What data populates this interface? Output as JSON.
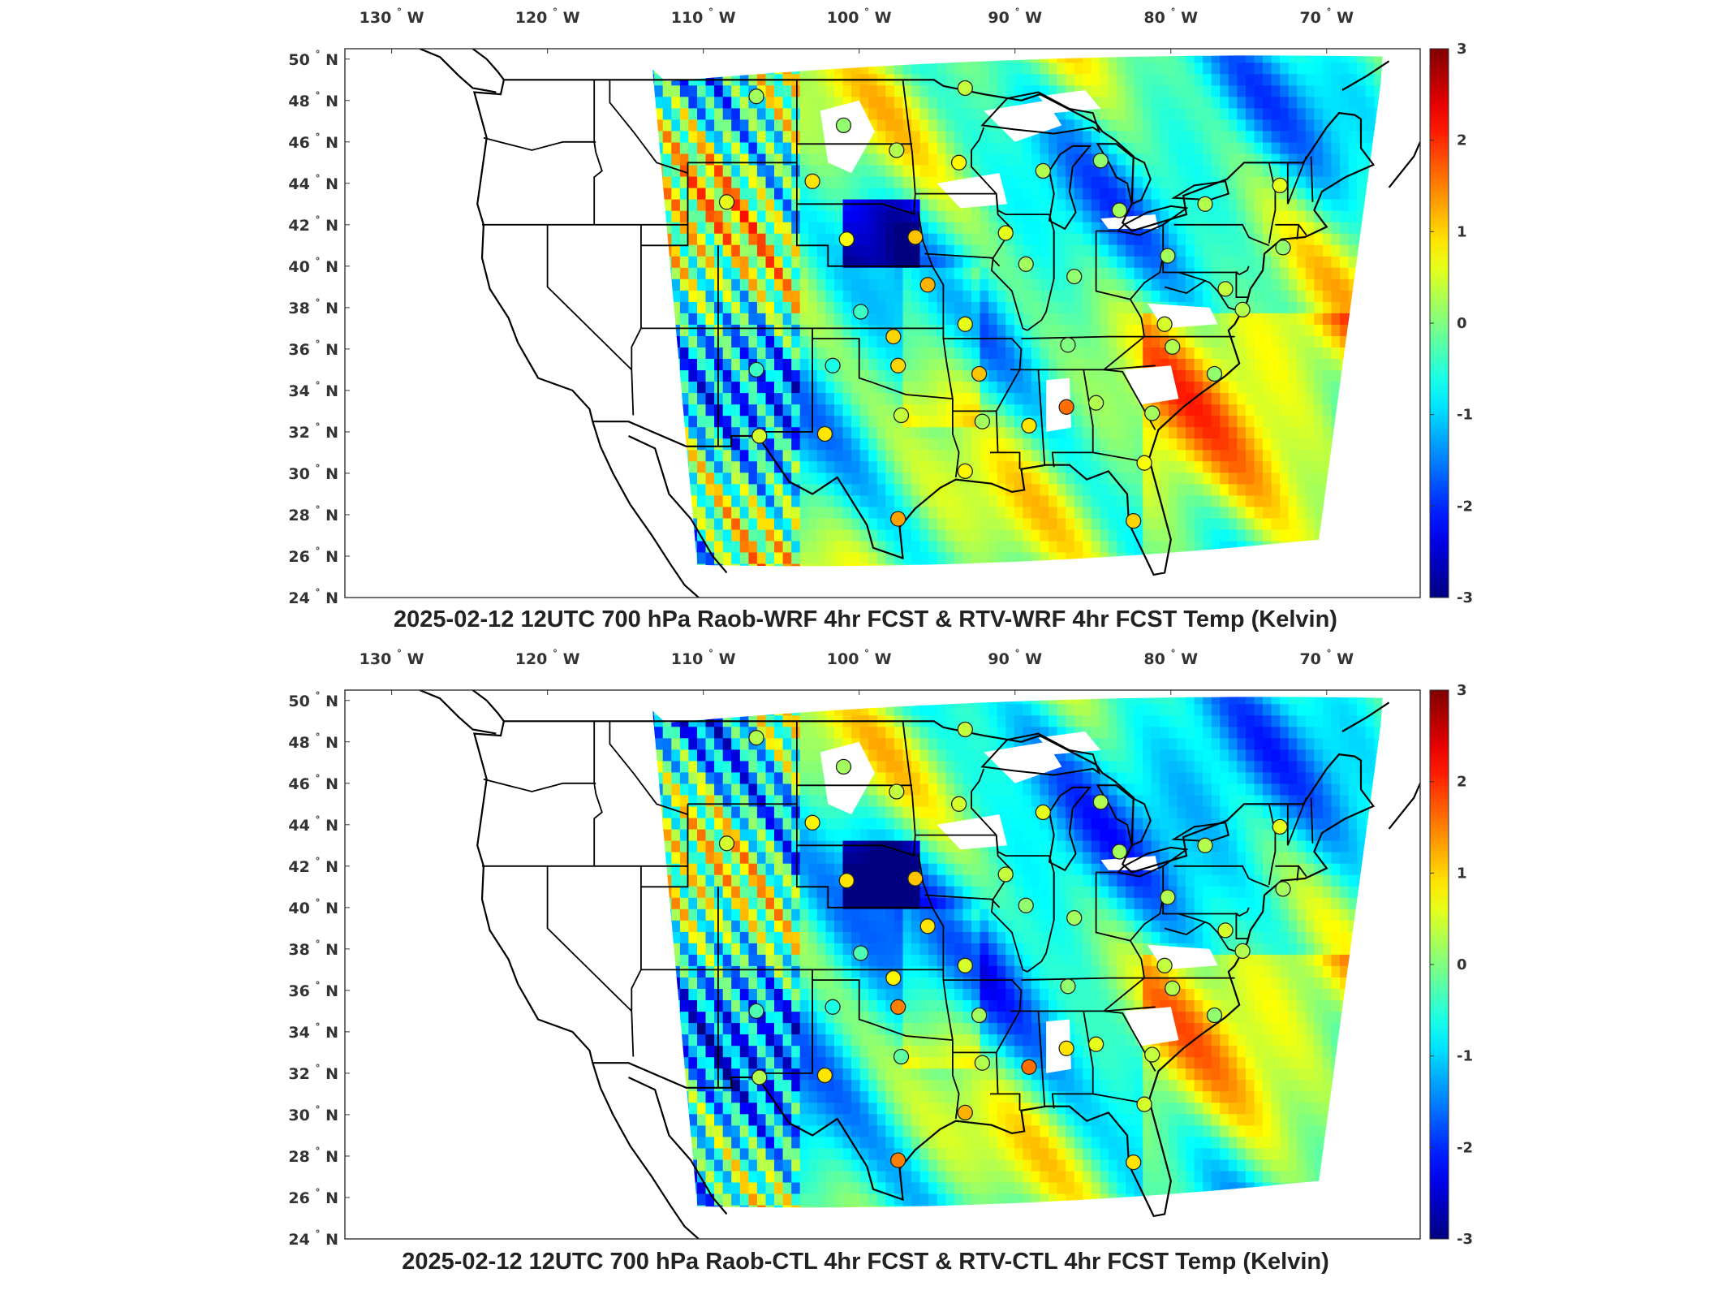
{
  "panels": [
    {
      "id": "top",
      "title": "2025-02-12 12UTC 700 hPa Raob-WRF 4hr FCST & RTV-WRF 4hr FCST Temp (Kelvin)",
      "colorbar": {
        "min": -3,
        "max": 3,
        "ticks": [
          "3",
          "2",
          "1",
          "0",
          "-1",
          "-2",
          "-3"
        ],
        "colormap": "jet"
      },
      "stations": [
        {
          "lon": -106.6,
          "lat": 48.2,
          "value": 0.2
        },
        {
          "lon": -101.0,
          "lat": 46.8,
          "value": 0.1
        },
        {
          "lon": -97.6,
          "lat": 45.6,
          "value": 0.3
        },
        {
          "lon": -93.2,
          "lat": 48.6,
          "value": 0.4
        },
        {
          "lon": -93.6,
          "lat": 45.0,
          "value": 0.8
        },
        {
          "lon": -88.2,
          "lat": 44.6,
          "value": 0.3
        },
        {
          "lon": -84.5,
          "lat": 45.1,
          "value": 0.1
        },
        {
          "lon": -83.3,
          "lat": 42.7,
          "value": 0.2
        },
        {
          "lon": -108.5,
          "lat": 43.1,
          "value": 0.6
        },
        {
          "lon": -103.0,
          "lat": 44.1,
          "value": 0.9
        },
        {
          "lon": -100.8,
          "lat": 41.3,
          "value": 0.7
        },
        {
          "lon": -96.4,
          "lat": 41.4,
          "value": 1.1
        },
        {
          "lon": -90.6,
          "lat": 41.6,
          "value": 0.6
        },
        {
          "lon": -77.8,
          "lat": 43.0,
          "value": 0.3
        },
        {
          "lon": -73.0,
          "lat": 43.9,
          "value": 0.6
        },
        {
          "lon": -72.8,
          "lat": 40.9,
          "value": 0.1
        },
        {
          "lon": -95.6,
          "lat": 39.1,
          "value": 1.2
        },
        {
          "lon": -89.3,
          "lat": 40.1,
          "value": 0.2
        },
        {
          "lon": -86.2,
          "lat": 39.5,
          "value": 0.1
        },
        {
          "lon": -80.2,
          "lat": 40.5,
          "value": 0.2
        },
        {
          "lon": -99.9,
          "lat": 37.8,
          "value": -0.4
        },
        {
          "lon": -93.2,
          "lat": 37.2,
          "value": 0.6
        },
        {
          "lon": -76.5,
          "lat": 38.9,
          "value": 0.4
        },
        {
          "lon": -75.4,
          "lat": 37.9,
          "value": 0.3
        },
        {
          "lon": -80.4,
          "lat": 37.2,
          "value": 0.5
        },
        {
          "lon": -97.8,
          "lat": 36.6,
          "value": 1.0
        },
        {
          "lon": -86.6,
          "lat": 36.2,
          "value": 0.0
        },
        {
          "lon": -79.9,
          "lat": 36.1,
          "value": 0.3
        },
        {
          "lon": -106.6,
          "lat": 35.0,
          "value": -0.4
        },
        {
          "lon": -101.7,
          "lat": 35.2,
          "value": -0.6
        },
        {
          "lon": -97.5,
          "lat": 35.2,
          "value": 1.0
        },
        {
          "lon": -92.3,
          "lat": 34.8,
          "value": 1.1
        },
        {
          "lon": -77.2,
          "lat": 34.8,
          "value": 0.1
        },
        {
          "lon": -97.3,
          "lat": 32.8,
          "value": 0.4
        },
        {
          "lon": -92.1,
          "lat": 32.5,
          "value": 0.2
        },
        {
          "lon": -89.1,
          "lat": 32.3,
          "value": 0.9
        },
        {
          "lon": -86.7,
          "lat": 33.2,
          "value": 1.6
        },
        {
          "lon": -84.8,
          "lat": 33.4,
          "value": 0.3
        },
        {
          "lon": -81.2,
          "lat": 32.9,
          "value": 0.2
        },
        {
          "lon": -106.4,
          "lat": 31.8,
          "value": 0.5
        },
        {
          "lon": -102.2,
          "lat": 31.9,
          "value": 0.9
        },
        {
          "lon": -93.2,
          "lat": 30.1,
          "value": 0.8
        },
        {
          "lon": -81.7,
          "lat": 30.5,
          "value": 0.7
        },
        {
          "lon": -97.5,
          "lat": 27.8,
          "value": 1.3
        },
        {
          "lon": -82.4,
          "lat": 27.7,
          "value": 1.0
        }
      ]
    },
    {
      "id": "bottom",
      "title": "2025-02-12 12UTC 700 hPa Raob-CTL 4hr FCST & RTV-CTL 4hr FCST Temp (Kelvin)",
      "colorbar": {
        "min": -3,
        "max": 3,
        "ticks": [
          "3",
          "2",
          "1",
          "0",
          "-1",
          "-2",
          "-3"
        ],
        "colormap": "jet"
      },
      "stations": [
        {
          "lon": -106.6,
          "lat": 48.2,
          "value": 0.3
        },
        {
          "lon": -101.0,
          "lat": 46.8,
          "value": 0.2
        },
        {
          "lon": -97.6,
          "lat": 45.6,
          "value": 0.4
        },
        {
          "lon": -93.2,
          "lat": 48.6,
          "value": 0.4
        },
        {
          "lon": -93.6,
          "lat": 45.0,
          "value": 0.5
        },
        {
          "lon": -88.2,
          "lat": 44.6,
          "value": 0.6
        },
        {
          "lon": -84.5,
          "lat": 45.1,
          "value": 0.3
        },
        {
          "lon": -83.3,
          "lat": 42.7,
          "value": 0.2
        },
        {
          "lon": -108.5,
          "lat": 43.1,
          "value": 0.5
        },
        {
          "lon": -103.0,
          "lat": 44.1,
          "value": 0.8
        },
        {
          "lon": -100.8,
          "lat": 41.3,
          "value": 0.9
        },
        {
          "lon": -96.4,
          "lat": 41.4,
          "value": 1.1
        },
        {
          "lon": -90.6,
          "lat": 41.6,
          "value": 0.4
        },
        {
          "lon": -77.8,
          "lat": 43.0,
          "value": 0.3
        },
        {
          "lon": -73.0,
          "lat": 43.9,
          "value": 0.6
        },
        {
          "lon": -72.8,
          "lat": 40.9,
          "value": 0.2
        },
        {
          "lon": -95.6,
          "lat": 39.1,
          "value": 0.9
        },
        {
          "lon": -89.3,
          "lat": 40.1,
          "value": 0.1
        },
        {
          "lon": -86.2,
          "lat": 39.5,
          "value": 0.2
        },
        {
          "lon": -80.2,
          "lat": 40.5,
          "value": 0.3
        },
        {
          "lon": -99.9,
          "lat": 37.8,
          "value": -0.3
        },
        {
          "lon": -93.2,
          "lat": 37.2,
          "value": 0.5
        },
        {
          "lon": -76.5,
          "lat": 38.9,
          "value": 0.5
        },
        {
          "lon": -75.4,
          "lat": 37.9,
          "value": 0.3
        },
        {
          "lon": -80.4,
          "lat": 37.2,
          "value": 0.4
        },
        {
          "lon": -97.8,
          "lat": 36.6,
          "value": 0.8
        },
        {
          "lon": -86.6,
          "lat": 36.2,
          "value": 0.1
        },
        {
          "lon": -79.9,
          "lat": 36.1,
          "value": 0.3
        },
        {
          "lon": -106.6,
          "lat": 35.0,
          "value": -0.3
        },
        {
          "lon": -101.7,
          "lat": 35.2,
          "value": -0.6
        },
        {
          "lon": -97.5,
          "lat": 35.2,
          "value": 1.5
        },
        {
          "lon": -92.3,
          "lat": 34.8,
          "value": 0.2
        },
        {
          "lon": -77.2,
          "lat": 34.8,
          "value": 0.1
        },
        {
          "lon": -97.3,
          "lat": 32.8,
          "value": -0.2
        },
        {
          "lon": -92.1,
          "lat": 32.5,
          "value": 0.3
        },
        {
          "lon": -89.1,
          "lat": 32.3,
          "value": 1.6
        },
        {
          "lon": -86.7,
          "lat": 33.2,
          "value": 0.9
        },
        {
          "lon": -84.8,
          "lat": 33.4,
          "value": 0.6
        },
        {
          "lon": -81.2,
          "lat": 32.9,
          "value": 0.4
        },
        {
          "lon": -106.4,
          "lat": 31.8,
          "value": 0.3
        },
        {
          "lon": -102.2,
          "lat": 31.9,
          "value": 0.9
        },
        {
          "lon": -93.2,
          "lat": 30.1,
          "value": 1.2
        },
        {
          "lon": -81.7,
          "lat": 30.5,
          "value": 0.5
        },
        {
          "lon": -97.5,
          "lat": 27.8,
          "value": 1.5
        },
        {
          "lon": -82.4,
          "lat": 27.7,
          "value": 0.9
        }
      ]
    }
  ],
  "axes": {
    "lon_ticks": [
      {
        "lon": -130,
        "label": "130",
        "hemi": "W"
      },
      {
        "lon": -120,
        "label": "120",
        "hemi": "W"
      },
      {
        "lon": -110,
        "label": "110",
        "hemi": "W"
      },
      {
        "lon": -100,
        "label": "100",
        "hemi": "W"
      },
      {
        "lon": -90,
        "label": "90",
        "hemi": "W"
      },
      {
        "lon": -80,
        "label": "80",
        "hemi": "W"
      },
      {
        "lon": -70,
        "label": "70",
        "hemi": "W"
      }
    ],
    "lat_ticks": [
      {
        "lat": 50,
        "label": "50",
        "hemi": "N"
      },
      {
        "lat": 48,
        "label": "48",
        "hemi": "N"
      },
      {
        "lat": 46,
        "label": "46",
        "hemi": "N"
      },
      {
        "lat": 44,
        "label": "44",
        "hemi": "N"
      },
      {
        "lat": 42,
        "label": "42",
        "hemi": "N"
      },
      {
        "lat": 40,
        "label": "40",
        "hemi": "N"
      },
      {
        "lat": 38,
        "label": "38",
        "hemi": "N"
      },
      {
        "lat": 36,
        "label": "36",
        "hemi": "N"
      },
      {
        "lat": 34,
        "label": "34",
        "hemi": "N"
      },
      {
        "lat": 32,
        "label": "32",
        "hemi": "N"
      },
      {
        "lat": 30,
        "label": "30",
        "hemi": "N"
      },
      {
        "lat": 28,
        "label": "28",
        "hemi": "N"
      },
      {
        "lat": 26,
        "label": "26",
        "hemi": "N"
      },
      {
        "lat": 24,
        "label": "24",
        "hemi": "N"
      }
    ]
  },
  "colors": {
    "land_border": "#000000",
    "nodata": "#ffffff"
  }
}
